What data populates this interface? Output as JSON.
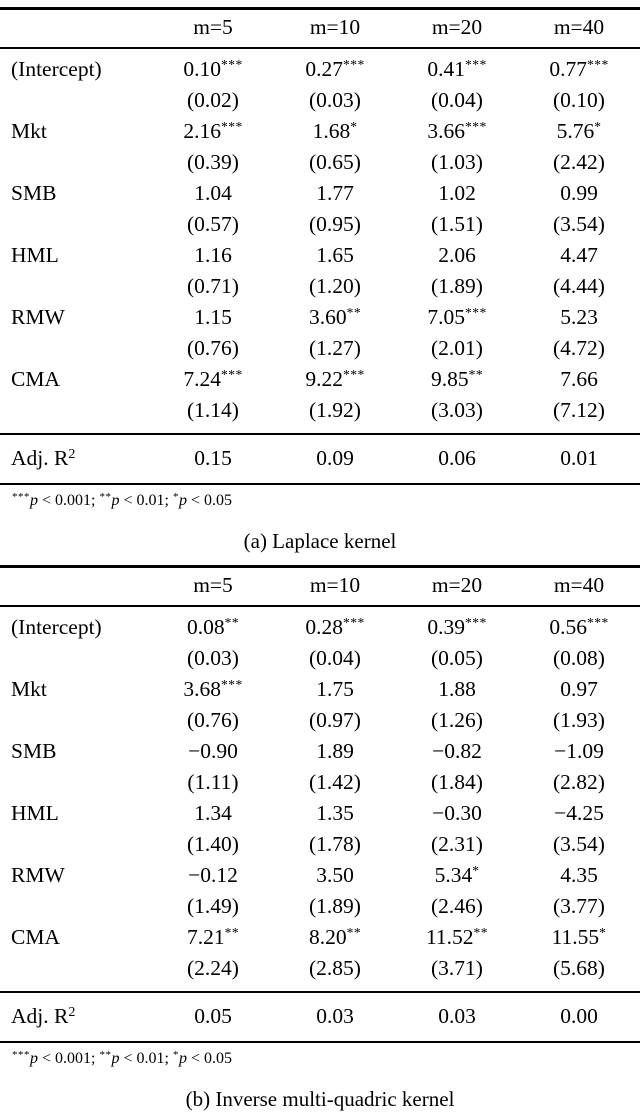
{
  "panels": [
    {
      "caption": "(a) Laplace kernel",
      "columns": [
        "m=5",
        "m=10",
        "m=20",
        "m=40"
      ],
      "rows": [
        {
          "label": "(Intercept)",
          "est": [
            "0.10",
            "0.27",
            "0.41",
            "0.77"
          ],
          "stars": [
            "***",
            "***",
            "***",
            "***"
          ],
          "se": [
            "(0.02)",
            "(0.03)",
            "(0.04)",
            "(0.10)"
          ]
        },
        {
          "label": "Mkt",
          "est": [
            "2.16",
            "1.68",
            "3.66",
            "5.76"
          ],
          "stars": [
            "***",
            "*",
            "***",
            "*"
          ],
          "se": [
            "(0.39)",
            "(0.65)",
            "(1.03)",
            "(2.42)"
          ]
        },
        {
          "label": "SMB",
          "est": [
            "1.04",
            "1.77",
            "1.02",
            "0.99"
          ],
          "stars": [
            "",
            "",
            "",
            ""
          ],
          "se": [
            "(0.57)",
            "(0.95)",
            "(1.51)",
            "(3.54)"
          ]
        },
        {
          "label": "HML",
          "est": [
            "1.16",
            "1.65",
            "2.06",
            "4.47"
          ],
          "stars": [
            "",
            "",
            "",
            ""
          ],
          "se": [
            "(0.71)",
            "(1.20)",
            "(1.89)",
            "(4.44)"
          ]
        },
        {
          "label": "RMW",
          "est": [
            "1.15",
            "3.60",
            "7.05",
            "5.23"
          ],
          "stars": [
            "",
            "**",
            "***",
            ""
          ],
          "se": [
            "(0.76)",
            "(1.27)",
            "(2.01)",
            "(4.72)"
          ]
        },
        {
          "label": "CMA",
          "est": [
            "7.24",
            "9.22",
            "9.85",
            "7.66"
          ],
          "stars": [
            "***",
            "***",
            "**",
            ""
          ],
          "se": [
            "(1.14)",
            "(1.92)",
            "(3.03)",
            "(7.12)"
          ]
        }
      ],
      "summary": {
        "label": "Adj. R",
        "sup": "2",
        "values": [
          "0.15",
          "0.09",
          "0.06",
          "0.01"
        ]
      },
      "note": [
        {
          "stars": "***",
          "p": "p",
          "rest": " < 0.001; "
        },
        {
          "stars": "**",
          "p": "p",
          "rest": " < 0.01; "
        },
        {
          "stars": "*",
          "p": "p",
          "rest": " < 0.05"
        }
      ]
    },
    {
      "caption": "(b) Inverse multi-quadric kernel",
      "columns": [
        "m=5",
        "m=10",
        "m=20",
        "m=40"
      ],
      "rows": [
        {
          "label": "(Intercept)",
          "est": [
            "0.08",
            "0.28",
            "0.39",
            "0.56"
          ],
          "stars": [
            "**",
            "***",
            "***",
            "***"
          ],
          "se": [
            "(0.03)",
            "(0.04)",
            "(0.05)",
            "(0.08)"
          ]
        },
        {
          "label": "Mkt",
          "est": [
            "3.68",
            "1.75",
            "1.88",
            "0.97"
          ],
          "stars": [
            "***",
            "",
            "",
            ""
          ],
          "se": [
            "(0.76)",
            "(0.97)",
            "(1.26)",
            "(1.93)"
          ]
        },
        {
          "label": "SMB",
          "est": [
            "−0.90",
            "1.89",
            "−0.82",
            "−1.09"
          ],
          "stars": [
            "",
            "",
            "",
            ""
          ],
          "se": [
            "(1.11)",
            "(1.42)",
            "(1.84)",
            "(2.82)"
          ]
        },
        {
          "label": "HML",
          "est": [
            "1.34",
            "1.35",
            "−0.30",
            "−4.25"
          ],
          "stars": [
            "",
            "",
            "",
            ""
          ],
          "se": [
            "(1.40)",
            "(1.78)",
            "(2.31)",
            "(3.54)"
          ]
        },
        {
          "label": "RMW",
          "est": [
            "−0.12",
            "3.50",
            "5.34",
            "4.35"
          ],
          "stars": [
            "",
            "",
            "*",
            ""
          ],
          "se": [
            "(1.49)",
            "(1.89)",
            "(2.46)",
            "(3.77)"
          ]
        },
        {
          "label": "CMA",
          "est": [
            "7.21",
            "8.20",
            "11.52",
            "11.55"
          ],
          "stars": [
            "**",
            "**",
            "**",
            "*"
          ],
          "se": [
            "(2.24)",
            "(2.85)",
            "(3.71)",
            "(5.68)"
          ]
        }
      ],
      "summary": {
        "label": "Adj. R",
        "sup": "2",
        "values": [
          "0.05",
          "0.03",
          "0.03",
          "0.00"
        ]
      },
      "note": [
        {
          "stars": "***",
          "p": "p",
          "rest": " < 0.001; "
        },
        {
          "stars": "**",
          "p": "p",
          "rest": " < 0.01; "
        },
        {
          "stars": "*",
          "p": "p",
          "rest": " < 0.05"
        }
      ]
    }
  ]
}
